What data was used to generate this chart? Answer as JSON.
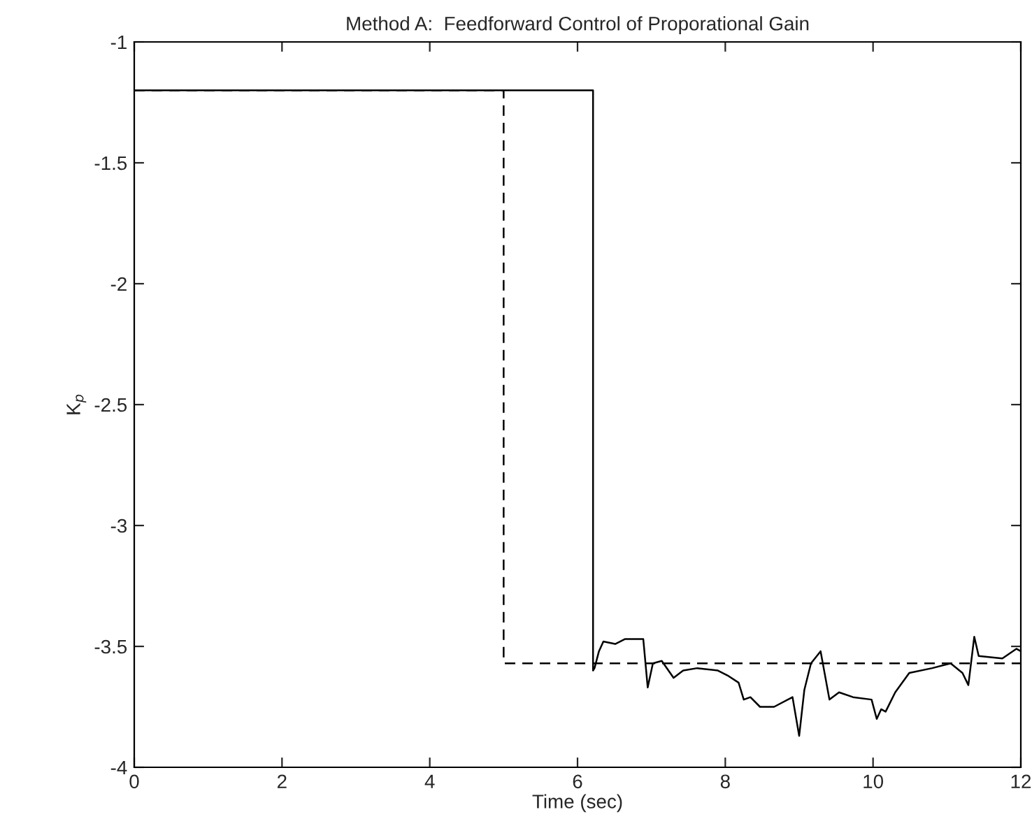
{
  "chart_data": {
    "type": "line",
    "title": "Method A:  Feedforward Control of Proporational Gain",
    "xlabel": "Time (sec)",
    "ylabel": "K$_{p}$",
    "xlim": [
      0,
      12
    ],
    "xticks": [
      0,
      2,
      4,
      6,
      8,
      10,
      12
    ],
    "ylim": [
      -4,
      -1
    ],
    "yticks": [
      -4,
      -3.5,
      -3,
      -2.5,
      -2,
      -1.5,
      -1
    ],
    "grid": false,
    "legend": false,
    "marker": "none",
    "series": [
      {
        "color": "#000000",
        "line_style": "solid",
        "x": [
          0,
          6.21,
          6.21,
          6.23,
          6.29,
          6.35,
          6.51,
          6.64,
          6.89,
          6.95,
          7.02,
          7.14,
          7.3,
          7.43,
          7.62,
          7.9,
          8.03,
          8.18,
          8.25,
          8.34,
          8.47,
          8.66,
          8.91,
          9.0,
          9.07,
          9.16,
          9.29,
          9.41,
          9.54,
          9.73,
          9.98,
          10.05,
          10.11,
          10.17,
          10.3,
          10.49,
          10.8,
          11.05,
          11.21,
          11.29,
          11.37,
          11.43,
          11.75,
          11.94,
          12.0
        ],
        "values": [
          -1.2,
          -1.2,
          -3.6,
          -3.59,
          -3.52,
          -3.48,
          -3.49,
          -3.47,
          -3.47,
          -3.67,
          -3.57,
          -3.56,
          -3.63,
          -3.6,
          -3.59,
          -3.6,
          -3.62,
          -3.65,
          -3.72,
          -3.71,
          -3.75,
          -3.75,
          -3.71,
          -3.87,
          -3.68,
          -3.57,
          -3.52,
          -3.72,
          -3.69,
          -3.71,
          -3.72,
          -3.8,
          -3.76,
          -3.77,
          -3.69,
          -3.61,
          -3.59,
          -3.57,
          -3.61,
          -3.66,
          -3.46,
          -3.54,
          -3.55,
          -3.51,
          -3.52
        ]
      },
      {
        "color": "#000000",
        "line_style": "dashed",
        "x": [
          0,
          5,
          5,
          12
        ],
        "values": [
          -1.2,
          -1.2,
          -3.57,
          -3.57
        ]
      }
    ]
  }
}
